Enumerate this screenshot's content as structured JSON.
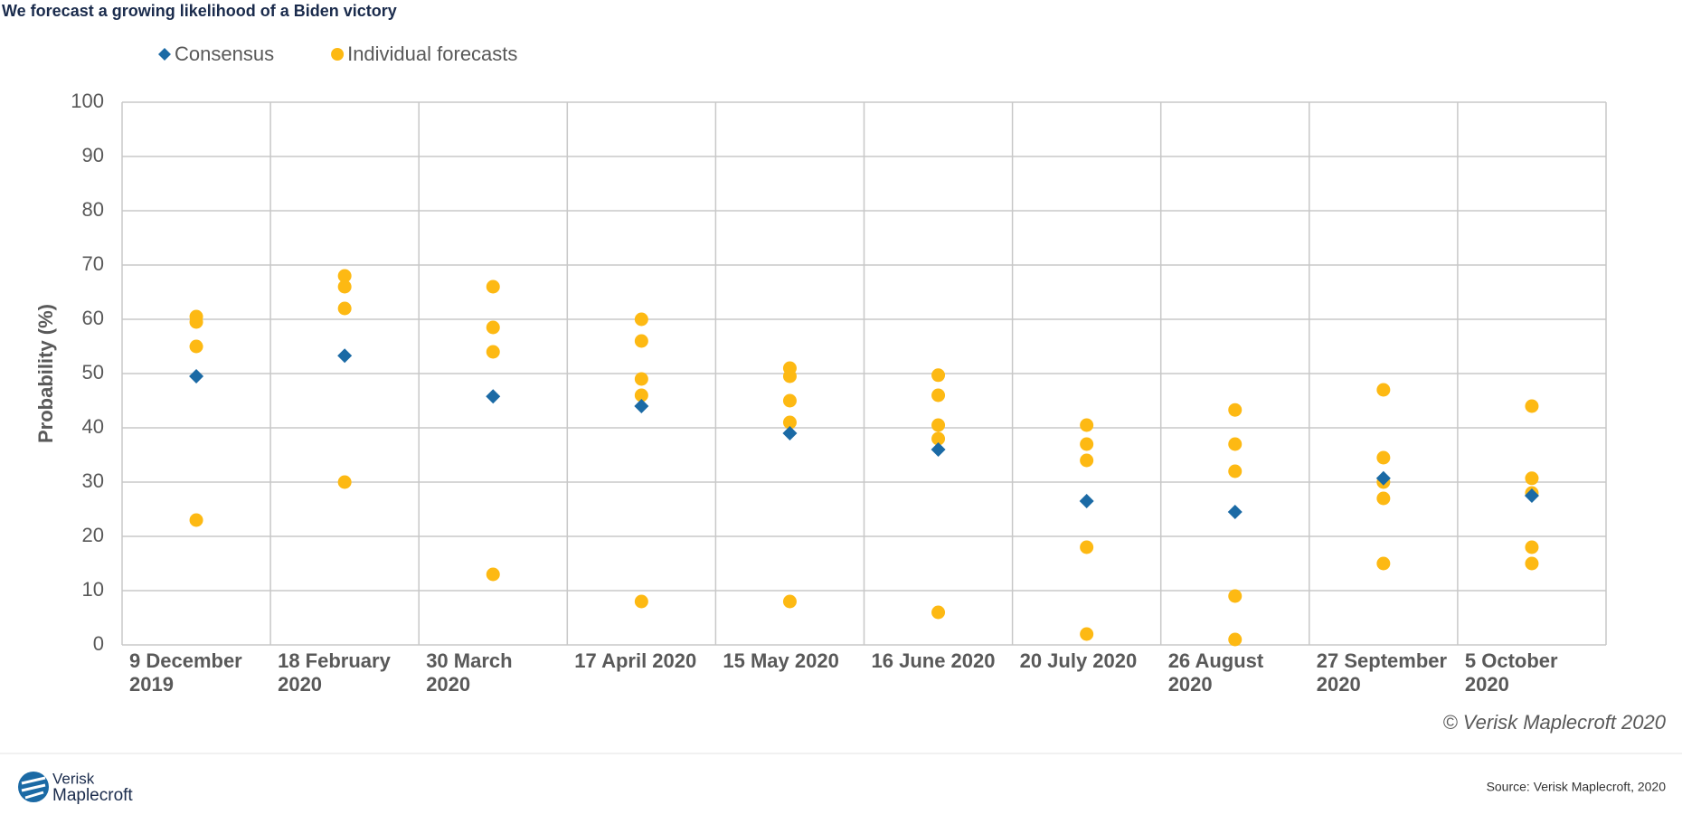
{
  "chart_data": {
    "type": "dot",
    "title": "We forecast a growing likelihood of a Biden victory",
    "y_label": "Probability (%)",
    "categories": [
      "9 December 2019",
      "18 February 2020",
      "30 March 2020",
      "17 April 2020",
      "15 May 2020",
      "16 June 2020",
      "20 July 2020",
      "26 August 2020",
      "27 September 2020",
      "5 October 2020"
    ],
    "series": [
      {
        "name": "Consensus",
        "color": "#1b6aa5",
        "marker": "diamond",
        "values": [
          49.5,
          53.3,
          45.8,
          44,
          39,
          36,
          26.5,
          24.5,
          30.7,
          27.5
        ]
      },
      {
        "name": "Individual forecasts",
        "color": "#fdb913",
        "marker": "circle",
        "values": [
          [
            60.5,
            59.5,
            55,
            23
          ],
          [
            68,
            66,
            62,
            30
          ],
          [
            66,
            58.5,
            54,
            13
          ],
          [
            60,
            56,
            49,
            46,
            8
          ],
          [
            51,
            49.5,
            45,
            41,
            8
          ],
          [
            49.7,
            46,
            40.5,
            38,
            6
          ],
          [
            40.5,
            37,
            34,
            18,
            2
          ],
          [
            43.3,
            37,
            32,
            9,
            1
          ],
          [
            47,
            34.5,
            30,
            27,
            15
          ],
          [
            44,
            30.7,
            28,
            18,
            15
          ]
        ]
      }
    ],
    "ylim": [
      0,
      100
    ],
    "yticks": [
      0,
      10,
      20,
      30,
      40,
      50,
      60,
      70,
      80,
      90,
      100
    ],
    "grid": true,
    "annotation": "© Verisk Maplecroft 2020"
  },
  "footer": {
    "logo": [
      "Verisk",
      "Maplecroft"
    ],
    "source": "Source: Verisk Maplecroft, 2020"
  }
}
